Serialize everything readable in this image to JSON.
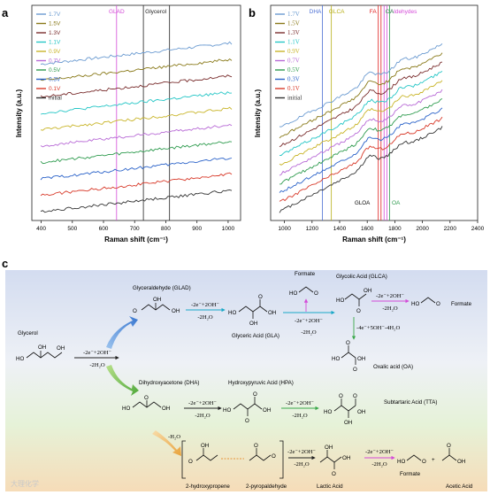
{
  "panel_labels": {
    "a": "a",
    "b": "b",
    "c": "c"
  },
  "chart_data": [
    {
      "type": "line",
      "panel": "a",
      "xlabel": "Raman shift (cm⁻¹)",
      "ylabel": "Intensity (a.u.)",
      "xlim": [
        370,
        1040
      ],
      "xticks": [
        "400",
        "500",
        "600",
        "700",
        "800",
        "900",
        "1000"
      ],
      "legend_position": "top-left",
      "series": [
        {
          "name": "1.7V",
          "color": "#6b9bd1"
        },
        {
          "name": "1.5V",
          "color": "#8a7a1a"
        },
        {
          "name": "1.3V",
          "color": "#7a2e2e"
        },
        {
          "name": "1.1V",
          "color": "#26c6c6"
        },
        {
          "name": "0.9V",
          "color": "#c9b52a"
        },
        {
          "name": "0.7V",
          "color": "#b86ad6"
        },
        {
          "name": "0.5V",
          "color": "#2e9b4e"
        },
        {
          "name": "0.3V",
          "color": "#2a62c9"
        },
        {
          "name": "0.1V",
          "color": "#d83a2a"
        },
        {
          "name": "initial",
          "color": "#333333"
        }
      ],
      "markers": [
        {
          "label": "GLAD",
          "x": 642,
          "color": "#d44bd8"
        },
        {
          "label": "Glycerol",
          "x": 728,
          "color": "#222222"
        },
        {
          "label": "",
          "x": 812,
          "color": "#222222"
        }
      ]
    },
    {
      "type": "line",
      "panel": "b",
      "xlabel": "Raman shift (cm⁻¹)",
      "ylabel": "Intensity (a.u.)",
      "xlim": [
        900,
        2400
      ],
      "xticks": [
        "1000",
        "1200",
        "1400",
        "1600",
        "1800",
        "2000",
        "2200",
        "2400"
      ],
      "legend_position": "top-left",
      "series": [
        {
          "name": "1.7V",
          "color": "#6b9bd1"
        },
        {
          "name": "1.5V",
          "color": "#8a7a1a"
        },
        {
          "name": "1.3V",
          "color": "#7a2e2e"
        },
        {
          "name": "1.1V",
          "color": "#26c6c6"
        },
        {
          "name": "0.9V",
          "color": "#c9b52a"
        },
        {
          "name": "0.7V",
          "color": "#b86ad6"
        },
        {
          "name": "0.5V",
          "color": "#2e9b4e"
        },
        {
          "name": "0.3V",
          "color": "#2a62c9"
        },
        {
          "name": "0.1V",
          "color": "#d83a2a"
        },
        {
          "name": "initial",
          "color": "#333333"
        }
      ],
      "markers": [
        {
          "label": "DHA",
          "x": 1275,
          "color": "#4b6fd4"
        },
        {
          "label": "GLCA",
          "x": 1340,
          "color": "#b8b01a"
        },
        {
          "label": "FA",
          "x": 1680,
          "color": "#e02020"
        },
        {
          "label": "",
          "x": 1700,
          "color": "#e02020"
        },
        {
          "label": "Aldehydes",
          "x": 1722,
          "color": "#d44bd8"
        },
        {
          "label": "",
          "x": 1742,
          "color": "#d44bd8"
        },
        {
          "label": "OA",
          "x": 1762,
          "color": "#2e9b4e"
        }
      ],
      "annotations": [
        "GLOA",
        "OA"
      ]
    }
  ],
  "scheme": {
    "glycerol": "Glycerol",
    "glad": "Glyceraldehyde (GLAD)",
    "dha": "Dihydroxyacetone (DHA)",
    "gla": "Glyceric Acid (GLA)",
    "hpa": "Hydroxypyruvic Acid (HPA)",
    "formate_top": "Formate",
    "glca": "Glycolic Acid (GLCA)",
    "formate_right": "Formate",
    "oa": "Oxalic acid (OA)",
    "tta": "Subtartaric Acid (TTA)",
    "hydroxypropene": "2-hydroxypropene",
    "pyropaldehyde": "2-pyropaldehyde",
    "lactic": "Lactic Acid",
    "formate_bottom": "Formate",
    "acetic": "Acetic Acid",
    "plus": "+",
    "r1_top": "-2e⁻+2OH⁻",
    "r1_bot": "-2H₂O",
    "r2_top": "-2e⁻+2OH⁻",
    "r2_bot": "-2H₂O",
    "r3_top": "-2e⁻+2OH⁻",
    "r3_bot": "-2H₂O",
    "r4_top": "-2e⁻+2OH⁻",
    "r4_bot": "-2H₂O",
    "r5": "-4e⁻+5OH⁻-4H₂O",
    "r6_top": "-2e⁻+2OH⁻",
    "r6_bot": "-2H₂O",
    "r7_top": "-2e⁻+2OH⁻",
    "r7_bot": "-2H₂O",
    "r8": "-H₂O",
    "r9_top": "-2e⁻+2OH⁻",
    "r9_bot": "-2H₂O",
    "r10_top": "-2e⁻+2OH⁻",
    "r10_bot": "-2H₂O"
  },
  "watermark": "大理化学"
}
